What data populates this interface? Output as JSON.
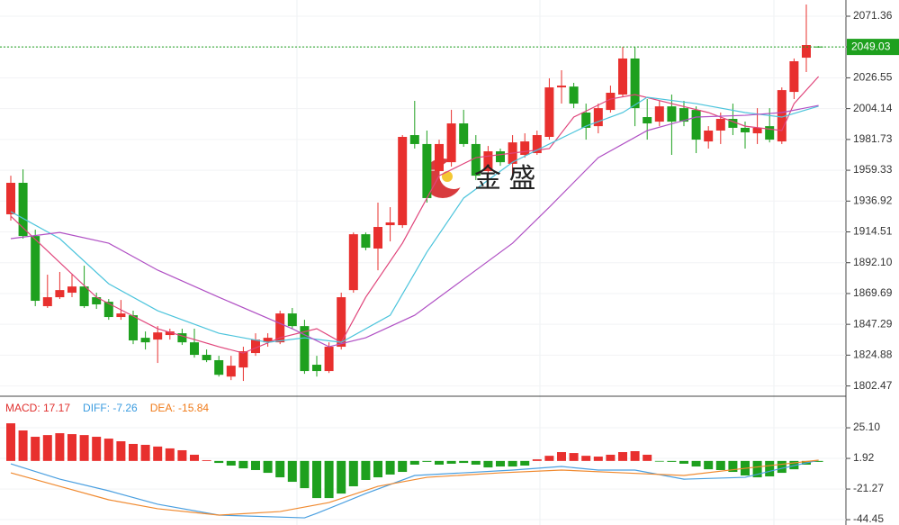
{
  "chart_data": [
    {
      "type": "candlestick",
      "ylim": [
        1795,
        2083.15
      ],
      "yticks": [
        2071.36,
        2049.03,
        2026.55,
        2004.14,
        1981.73,
        1959.33,
        1936.92,
        1914.51,
        {
          "value": 1892.1,
          "label": "1892.10"
        },
        1869.69,
        1847.29,
        1824.88,
        1802.47
      ],
      "up_color": "#e8302e",
      "down_color": "#1ea01e",
      "open": [
        1927.3,
        1950.2,
        1911.5,
        1860.5,
        1867.0,
        1870.3,
        1874.8,
        1867.0,
        1863.7,
        1852.6,
        1853.9,
        1837.5,
        1836.2,
        1839.5,
        1840.8,
        1834.2,
        1825.1,
        1821.2,
        1809.3,
        1815.9,
        1826.4,
        1834.2,
        1834.2,
        1855.2,
        1846.0,
        1817.9,
        1813.3,
        1831.0,
        1872.2,
        1912.8,
        1902.4,
        1919.4,
        1919.4,
        1984.9,
        1978.4,
        1958.7,
        1965.2,
        1993.4,
        1978.4,
        1958.7,
        1973.1,
        1964.0,
        1970.5,
        1971.8,
        1983.6,
        2019.6,
        2020.2,
        2001.3,
        1991.4,
        2003.2,
        2014.4,
        2040.6,
        1998.0,
        1994.7,
        2005.8,
        2004.5,
        2003.2,
        1980.3,
        1988.2,
        1996.7,
        1990.2,
        1986.2,
        1991.4,
        1980.3,
        2016.3,
        2041.2,
        2049.3
      ],
      "high": [
        1955.4,
        1960.0,
        1916.1,
        1883.4,
        1885.4,
        1883.4,
        1889.9,
        1870.3,
        1865.7,
        1865.0,
        1857.2,
        1842.1,
        1846.0,
        1844.1,
        1844.1,
        1844.1,
        1829.0,
        1824.4,
        1824.4,
        1831.0,
        1840.8,
        1840.8,
        1857.2,
        1859.2,
        1850.6,
        1824.4,
        1834.2,
        1870.3,
        1914.1,
        1914.1,
        1935.8,
        1932.5,
        1984.9,
        2009.8,
        1988.2,
        1981.6,
        2003.3,
        2003.3,
        1984.9,
        1977.0,
        1975.1,
        1984.9,
        1986.2,
        1988.2,
        2026.2,
        2032.1,
        2022.9,
        2007.8,
        2007.8,
        2020.9,
        2049.1,
        2049.1,
        2011.1,
        2009.8,
        2014.4,
        2009.8,
        2005.8,
        1991.4,
        2001.3,
        2007.8,
        1994.7,
        2004.5,
        2004.5,
        2019.6,
        2040.6,
        2079.9,
        2049.6
      ],
      "low": [
        1922.7,
        1909.6,
        1860.5,
        1859.2,
        1865.7,
        1867.0,
        1859.2,
        1858.5,
        1850.6,
        1850.6,
        1832.9,
        1829.0,
        1819.2,
        1836.2,
        1832.3,
        1823.1,
        1819.8,
        1809.3,
        1806.7,
        1806.1,
        1824.4,
        1831.0,
        1832.9,
        1844.1,
        1811.3,
        1809.3,
        1811.9,
        1829.0,
        1870.3,
        1901.1,
        1886.6,
        1907.6,
        1917.4,
        1975.1,
        1935.8,
        1952.2,
        1962.0,
        1976.4,
        1952.2,
        1953.5,
        1962.6,
        1955.4,
        1968.5,
        1970.5,
        1981.6,
        2007.8,
        2004.5,
        1981.6,
        1986.2,
        2001.3,
        2012.4,
        1991.4,
        1981.6,
        1991.4,
        1970.5,
        1991.4,
        1971.8,
        1975.1,
        1978.4,
        1984.9,
        1975.1,
        1978.4,
        1979.6,
        1978.4,
        2011.1,
        2030.8,
        2048.5
      ],
      "close": [
        1950.2,
        1911.5,
        1864.4,
        1867.0,
        1872.2,
        1874.8,
        1860.5,
        1861.8,
        1852.6,
        1855.2,
        1835.6,
        1834.2,
        1841.4,
        1842.1,
        1834.2,
        1825.1,
        1821.2,
        1810.6,
        1817.2,
        1827.7,
        1836.2,
        1837.5,
        1855.2,
        1846.0,
        1813.3,
        1813.3,
        1831.0,
        1867.0,
        1912.8,
        1903.0,
        1918.1,
        1921.4,
        1983.6,
        1978.4,
        1939.1,
        1978.4,
        1993.4,
        1978.4,
        1955.4,
        1973.1,
        1965.2,
        1979.6,
        1980.3,
        1984.9,
        2019.6,
        2020.9,
        2007.8,
        1990.2,
        2004.5,
        2015.7,
        2040.6,
        2004.5,
        1993.4,
        2005.8,
        1994.7,
        1994.7,
        1981.6,
        1988.2,
        1996.7,
        1990.2,
        1986.9,
        1990.2,
        1981.6,
        2017.6,
        2038.6,
        2050.4,
        2049.03
      ],
      "lines": [
        {
          "color": "#e0457b",
          "x": [
            0,
            7,
            12,
            17,
            19,
            22,
            25,
            27,
            29,
            32,
            35,
            38,
            41,
            44,
            46,
            49,
            51,
            54,
            57,
            60,
            63,
            64,
            66
          ],
          "values": [
            1925.9,
            1867.0,
            1844.1,
            1831.0,
            1826.4,
            1837.5,
            1844.1,
            1834.2,
            1867.0,
            1906.3,
            1955.4,
            1968.5,
            1971.8,
            1975.1,
            1998.0,
            2011.1,
            2014.4,
            2007.8,
            2001.3,
            1991.4,
            1988.2,
            2007.8,
            2027.5
          ]
        },
        {
          "color": "#4cc4dc",
          "x": [
            0,
            4,
            8,
            12,
            17,
            21,
            24,
            27,
            31,
            34,
            37,
            41,
            44,
            47,
            50,
            52,
            56,
            60,
            63,
            66
          ],
          "values": [
            1929.2,
            1909.6,
            1876.8,
            1857.2,
            1840.8,
            1834.2,
            1837.5,
            1834.2,
            1853.9,
            1899.8,
            1939.1,
            1965.2,
            1978.4,
            1991.4,
            2001.3,
            2012.4,
            2007.8,
            2001.3,
            1998.0,
            2005.9
          ]
        },
        {
          "color": "#b050c4",
          "x": [
            0,
            4,
            8,
            12,
            17,
            23,
            26,
            29,
            33,
            37,
            41,
            44,
            48,
            52,
            56,
            60,
            63,
            66
          ],
          "values": [
            1909.6,
            1914.1,
            1906.3,
            1886.7,
            1867.0,
            1844.1,
            1831.0,
            1837.5,
            1853.9,
            1880.1,
            1906.3,
            1932.5,
            1968.5,
            1988.2,
            1998.0,
            1999.3,
            2001.3,
            2006.5
          ]
        }
      ],
      "last_price": 2049.03,
      "last_price_color": "#1ea01e",
      "watermark": "金 盛"
    },
    {
      "type": "macd",
      "ylim": [
        -48.5,
        49
      ],
      "yticks": [
        {
          "value": 25.1,
          "label": "25.10"
        },
        1.92,
        -21.27,
        -44.45
      ],
      "legend": [
        {
          "text": "MACD: 17.17",
          "color": "#e0302e"
        },
        {
          "text": "DIFF: -7.26",
          "color": "#3b9ce0"
        },
        {
          "text": "DEA: -15.84",
          "color": "#f07b1a"
        }
      ],
      "up_color": "#e8302e",
      "down_color": "#1ea01e",
      "values": [
        28.5,
        23.1,
        18.3,
        19.6,
        21.0,
        20.3,
        19.6,
        18.3,
        16.9,
        14.9,
        12.9,
        12.2,
        10.9,
        9.5,
        8.1,
        4.7,
        0.6,
        -1.5,
        -3.5,
        -5.6,
        -6.9,
        -9.0,
        -12.4,
        -15.8,
        -20.6,
        -28.1,
        -28.1,
        -24.7,
        -19.2,
        -14.4,
        -12.4,
        -10.3,
        -8.3,
        -2.8,
        -0.7,
        -2.8,
        -2.1,
        -1.5,
        -2.8,
        -4.9,
        -4.2,
        -4.2,
        -3.5,
        1.2,
        3.9,
        6.7,
        6.0,
        3.9,
        3.3,
        4.7,
        6.7,
        7.4,
        4.7,
        -0.5,
        -0.7,
        -2.1,
        -4.2,
        -6.3,
        -6.9,
        -8.3,
        -11.0,
        -12.4,
        -11.7,
        -9.0,
        -6.3,
        -2.8,
        -0.7
      ],
      "lines": [
        {
          "color": "#4a9fe0",
          "x": [
            0,
            4,
            8,
            12,
            17,
            24,
            25,
            29,
            33,
            37,
            41,
            45,
            48,
            51,
            55,
            60,
            63,
            66
          ],
          "values": [
            -2.2,
            -13.8,
            -22.6,
            -32.8,
            -41.0,
            -43.1,
            -39.7,
            -24.7,
            -11.0,
            -9.0,
            -6.9,
            -4.2,
            -6.9,
            -6.9,
            -13.8,
            -12.4,
            -5.6,
            0.6
          ]
        },
        {
          "color": "#f08a30",
          "x": [
            0,
            4,
            8,
            12,
            17,
            22,
            26,
            30,
            34,
            40,
            45,
            50,
            55,
            60,
            66
          ],
          "values": [
            -9.0,
            -19.2,
            -29.4,
            -36.2,
            -41.0,
            -38.3,
            -31.5,
            -19.2,
            -12.4,
            -9.0,
            -6.9,
            -9.0,
            -11.0,
            -5.6,
            0.6
          ]
        }
      ]
    }
  ]
}
